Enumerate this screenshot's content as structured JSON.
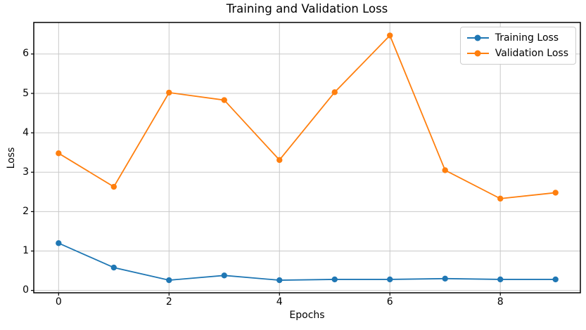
{
  "chart_data": {
    "type": "line",
    "title": "Training and Validation Loss",
    "xlabel": "Epochs",
    "ylabel": "Loss",
    "x": [
      0,
      1,
      2,
      3,
      4,
      5,
      6,
      7,
      8,
      9
    ],
    "series": [
      {
        "name": "Training Loss",
        "color": "#1f77b4",
        "values": [
          1.2,
          0.58,
          0.26,
          0.38,
          0.26,
          0.28,
          0.28,
          0.3,
          0.28,
          0.28
        ]
      },
      {
        "name": "Validation Loss",
        "color": "#ff7f0e",
        "values": [
          3.48,
          2.63,
          5.02,
          4.83,
          3.31,
          5.03,
          6.47,
          3.05,
          2.33,
          2.48
        ]
      }
    ],
    "xticks": [
      0,
      2,
      4,
      6,
      8
    ],
    "yticks": [
      0,
      1,
      2,
      3,
      4,
      5,
      6
    ],
    "xlim": [
      -0.45,
      9.45
    ],
    "ylim": [
      -0.06,
      6.8
    ],
    "grid": true,
    "legend_position": "upper right",
    "marker": "circle",
    "colors": {
      "grid": "#c9c9c9",
      "spine": "#000000",
      "background": "#ffffff"
    }
  }
}
